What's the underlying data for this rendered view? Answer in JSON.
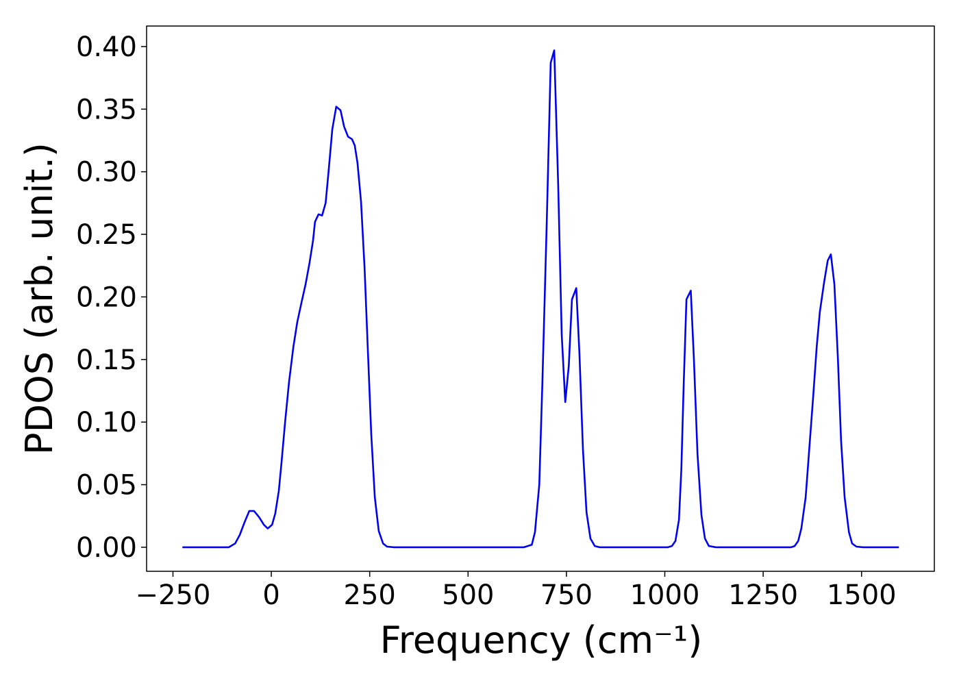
{
  "chart_data": {
    "type": "line",
    "xlabel": "Frequency (cm⁻¹)",
    "ylabel": "PDOS (arb. unit.)",
    "xlim": [
      -317,
      1685
    ],
    "ylim": [
      -0.0192,
      0.4164
    ],
    "xticks": [
      {
        "value": -250,
        "label": "−250"
      },
      0,
      250,
      500,
      750,
      1000,
      1250,
      1500
    ],
    "yticks": [
      {
        "value": 0,
        "label": "0.00"
      },
      {
        "value": 0.05,
        "label": "0.05"
      },
      {
        "value": 0.1,
        "label": "0.10"
      },
      {
        "value": 0.15,
        "label": "0.15"
      },
      {
        "value": 0.2,
        "label": "0.20"
      },
      {
        "value": 0.25,
        "label": "0.25"
      },
      {
        "value": 0.3,
        "label": "0.30"
      },
      {
        "value": 0.35,
        "label": "0.35"
      },
      {
        "value": 0.4,
        "label": "0.40"
      }
    ],
    "grid": false,
    "series": [
      {
        "color": "#0000ee",
        "x": [
          -226,
          -108,
          -92,
          -80,
          -68,
          -56,
          -44,
          -31,
          -19,
          -9,
          2,
          10,
          19,
          26,
          35,
          45,
          56,
          66,
          77,
          87,
          97,
          106,
          111,
          120,
          129,
          138,
          146,
          155,
          165,
          176,
          185,
          195,
          205,
          212,
          219,
          228,
          237,
          245,
          254,
          263,
          273,
          284,
          294,
          312,
          642,
          662,
          670,
          681,
          689,
          700,
          710,
          719,
          729,
          738,
          747,
          756,
          764,
          775,
          783,
          792,
          801,
          811,
          822,
          834,
          1008,
          1018,
          1027,
          1036,
          1042,
          1048,
          1055,
          1066,
          1074,
          1083,
          1093,
          1102,
          1112,
          1130,
          1321,
          1330,
          1339,
          1347,
          1358,
          1367,
          1377,
          1386,
          1394,
          1405,
          1414,
          1422,
          1431,
          1440,
          1448,
          1457,
          1468,
          1476,
          1487,
          1504,
          1595
        ],
        "values": [
          0,
          0,
          0.003,
          0.01,
          0.02,
          0.029,
          0.029,
          0.024,
          0.018,
          0.015,
          0.018,
          0.027,
          0.045,
          0.068,
          0.1,
          0.132,
          0.16,
          0.18,
          0.196,
          0.21,
          0.227,
          0.245,
          0.26,
          0.266,
          0.265,
          0.275,
          0.302,
          0.334,
          0.352,
          0.349,
          0.336,
          0.328,
          0.326,
          0.321,
          0.307,
          0.276,
          0.223,
          0.16,
          0.09,
          0.04,
          0.013,
          0.003,
          0.0005,
          0,
          0,
          0.002,
          0.012,
          0.05,
          0.133,
          0.26,
          0.387,
          0.397,
          0.29,
          0.17,
          0.116,
          0.145,
          0.198,
          0.207,
          0.155,
          0.078,
          0.028,
          0.007,
          0.001,
          0,
          0,
          0.001,
          0.005,
          0.022,
          0.062,
          0.13,
          0.198,
          0.205,
          0.15,
          0.075,
          0.026,
          0.007,
          0.001,
          0,
          0,
          0.001,
          0.005,
          0.015,
          0.04,
          0.078,
          0.12,
          0.16,
          0.188,
          0.212,
          0.229,
          0.234,
          0.21,
          0.15,
          0.085,
          0.04,
          0.012,
          0.003,
          0.0005,
          0,
          0
        ]
      }
    ]
  }
}
